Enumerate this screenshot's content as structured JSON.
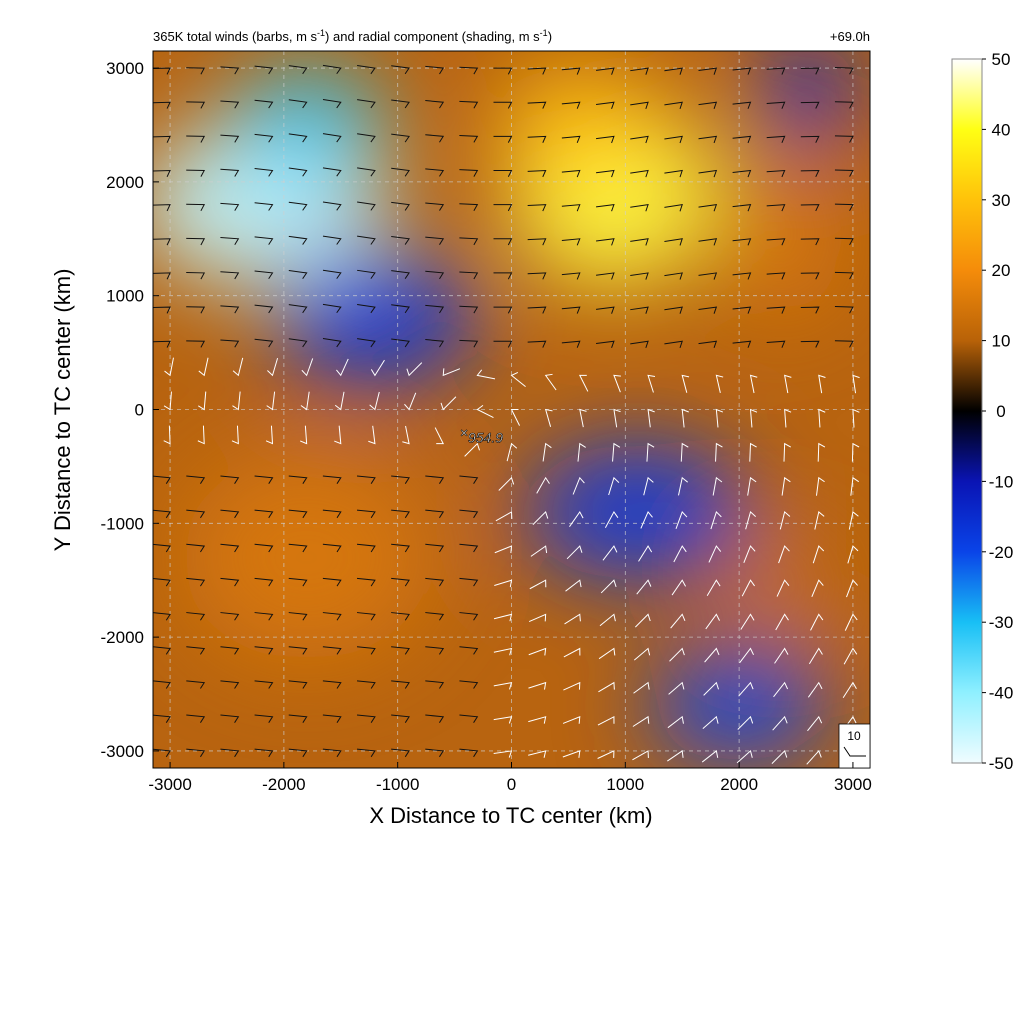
{
  "chart_data": {
    "type": "heatmap",
    "title_text": "365K total winds (barbs, m s",
    "title_sup": "-1",
    "title_middle": ") and radial component (shading, m s",
    "title_end": ")",
    "time_label": "+69.0h",
    "xlabel": "X Distance to TC center (km)",
    "ylabel": "Y Distance to TC center (km)",
    "xlim": [
      -3150,
      3150
    ],
    "ylim": [
      -3150,
      3150
    ],
    "xticks": [
      -3000,
      -2000,
      -1000,
      0,
      1000,
      2000,
      3000
    ],
    "yticks": [
      -3000,
      -2000,
      -1000,
      0,
      1000,
      2000,
      3000
    ],
    "grid": true,
    "colorbar": {
      "min": -50,
      "max": 50,
      "ticks": [
        50,
        40,
        30,
        20,
        10,
        0,
        -10,
        -20,
        -30,
        -40,
        -50
      ]
    },
    "center_marker": {
      "x": -400,
      "y": -200,
      "label": "954.9"
    },
    "reference_barb": {
      "label": "10"
    },
    "field_features": [
      {
        "x": -2200,
        "y": 1800,
        "value": -45
      },
      {
        "x": -1800,
        "y": 2500,
        "value": -32
      },
      {
        "x": -1200,
        "y": 800,
        "value": -18
      },
      {
        "x": 900,
        "y": 1900,
        "value": 42
      },
      {
        "x": 600,
        "y": 2500,
        "value": 30
      },
      {
        "x": 2400,
        "y": 1500,
        "value": 15
      },
      {
        "x": 2600,
        "y": 2800,
        "value": -15
      },
      {
        "x": 1100,
        "y": -900,
        "value": -18
      },
      {
        "x": 2000,
        "y": -2600,
        "value": -20
      },
      {
        "x": -1800,
        "y": -1300,
        "value": 15
      },
      {
        "x": 2400,
        "y": -1500,
        "value": 12
      }
    ]
  }
}
